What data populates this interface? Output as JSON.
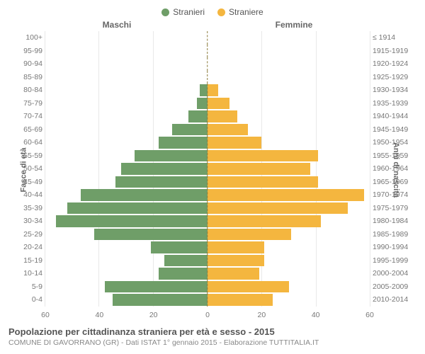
{
  "legend": {
    "male": {
      "label": "Stranieri",
      "color": "#6f9e68"
    },
    "female": {
      "label": "Straniere",
      "color": "#f4b63f"
    }
  },
  "headers": {
    "male": "Maschi",
    "female": "Femmine"
  },
  "axis": {
    "left_title": "Fasce di età",
    "right_title": "Anni di nascita",
    "max": 60,
    "ticks_left": [
      60,
      40,
      20,
      0
    ],
    "ticks_right": [
      0,
      20,
      40,
      60
    ],
    "grid_color": "#e8e8e8",
    "center_line_color": "#8a7a3a"
  },
  "rows": [
    {
      "age": "100+",
      "birth": "≤ 1914",
      "m": 0,
      "f": 0
    },
    {
      "age": "95-99",
      "birth": "1915-1919",
      "m": 0,
      "f": 0
    },
    {
      "age": "90-94",
      "birth": "1920-1924",
      "m": 0,
      "f": 0
    },
    {
      "age": "85-89",
      "birth": "1925-1929",
      "m": 0,
      "f": 0
    },
    {
      "age": "80-84",
      "birth": "1930-1934",
      "m": 3,
      "f": 4
    },
    {
      "age": "75-79",
      "birth": "1935-1939",
      "m": 4,
      "f": 8
    },
    {
      "age": "70-74",
      "birth": "1940-1944",
      "m": 7,
      "f": 11
    },
    {
      "age": "65-69",
      "birth": "1945-1949",
      "m": 13,
      "f": 15
    },
    {
      "age": "60-64",
      "birth": "1950-1954",
      "m": 18,
      "f": 20
    },
    {
      "age": "55-59",
      "birth": "1955-1959",
      "m": 27,
      "f": 41
    },
    {
      "age": "50-54",
      "birth": "1960-1964",
      "m": 32,
      "f": 38
    },
    {
      "age": "45-49",
      "birth": "1965-1969",
      "m": 34,
      "f": 41
    },
    {
      "age": "40-44",
      "birth": "1970-1974",
      "m": 47,
      "f": 58
    },
    {
      "age": "35-39",
      "birth": "1975-1979",
      "m": 52,
      "f": 52
    },
    {
      "age": "30-34",
      "birth": "1980-1984",
      "m": 56,
      "f": 42
    },
    {
      "age": "25-29",
      "birth": "1985-1989",
      "m": 42,
      "f": 31
    },
    {
      "age": "20-24",
      "birth": "1990-1994",
      "m": 21,
      "f": 21
    },
    {
      "age": "15-19",
      "birth": "1995-1999",
      "m": 16,
      "f": 21
    },
    {
      "age": "10-14",
      "birth": "2000-2004",
      "m": 18,
      "f": 19
    },
    {
      "age": "5-9",
      "birth": "2005-2009",
      "m": 38,
      "f": 30
    },
    {
      "age": "0-4",
      "birth": "2010-2014",
      "m": 35,
      "f": 24
    }
  ],
  "footer": {
    "title": "Popolazione per cittadinanza straniera per età e sesso - 2015",
    "subtitle": "COMUNE DI GAVORRANO (GR) - Dati ISTAT 1° gennaio 2015 - Elaborazione TUTTITALIA.IT"
  }
}
